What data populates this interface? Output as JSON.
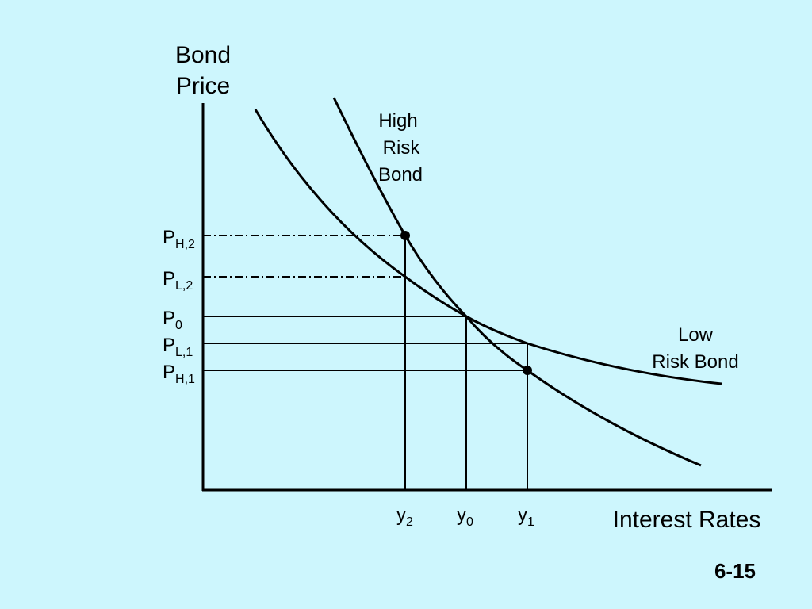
{
  "y_axis_title": [
    "Bond",
    "Price"
  ],
  "x_axis_title": "Interest Rates",
  "curves": [
    {
      "label": [
        "High",
        "Risk",
        "Bond"
      ]
    },
    {
      "label": [
        "Low",
        "Risk Bond"
      ]
    }
  ],
  "price_labels": [
    {
      "base": "P",
      "sub": "H,2"
    },
    {
      "base": "P",
      "sub": "L,2"
    },
    {
      "base": "P",
      "sub": "0"
    },
    {
      "base": "P",
      "sub": "L,1"
    },
    {
      "base": "P",
      "sub": "H,1"
    }
  ],
  "rate_labels": [
    {
      "base": "y",
      "sub": "2"
    },
    {
      "base": "y",
      "sub": "0"
    },
    {
      "base": "y",
      "sub": "1"
    }
  ],
  "slide_number": "6-15"
}
